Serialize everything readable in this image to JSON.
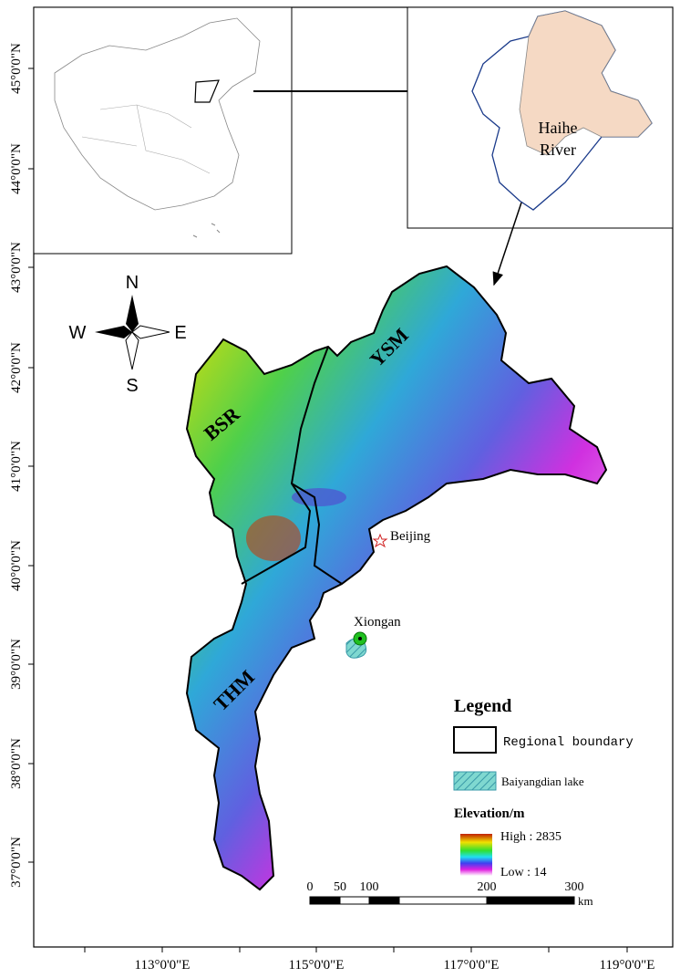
{
  "latitude_labels": [
    "45°0'0\"N",
    "44°0'0\"N",
    "43°0'0\"N",
    "42°0'0\"N",
    "41°0'0\"N",
    "40°0'0\"N",
    "39°0'0\"N",
    "38°0'0\"N",
    "37°0'0\"N"
  ],
  "longitude_labels": [
    "113°0'0\"E",
    "115°0'0\"E",
    "117°0'0\"E",
    "119°0'0\"E"
  ],
  "compass": {
    "north": "N",
    "west": "W",
    "east": "E",
    "south": "S"
  },
  "inset": {
    "label": "Haihe River"
  },
  "regions": [
    "BSR",
    "YSM",
    "THM"
  ],
  "places": [
    "Beijing",
    "Xiongan"
  ],
  "legend": {
    "title": "Legend",
    "boundary": "Regional boundary",
    "lake": "Baiyangdian lake",
    "elevation_title": "Elevation/m",
    "high": "High : 2835",
    "low": "Low : 14"
  },
  "scale_bar": {
    "labels": [
      "0",
      "50",
      "100",
      "200",
      "300"
    ],
    "unit": "km"
  }
}
